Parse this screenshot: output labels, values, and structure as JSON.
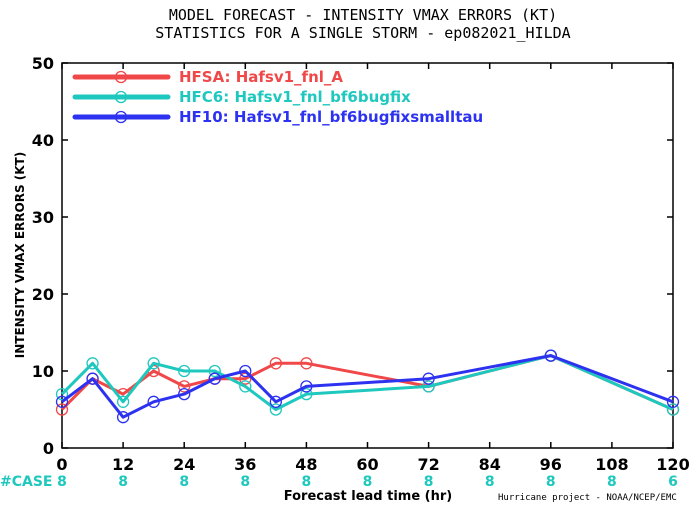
{
  "chart_data": {
    "type": "line",
    "title_line1": "MODEL FORECAST - INTENSITY VMAX ERRORS (KT)",
    "title_line2": "STATISTICS FOR A SINGLE STORM - ep082021_HILDA",
    "xlabel": "Forecast lead time (hr)",
    "ylabel": "INTENSITY VMAX ERRORS (KT)",
    "xlim": [
      0,
      120
    ],
    "ylim": [
      0,
      50
    ],
    "x_ticks": [
      "0",
      "12",
      "24",
      "36",
      "48",
      "60",
      "72",
      "84",
      "96",
      "108",
      "120"
    ],
    "y_ticks": [
      "0",
      "10",
      "20",
      "30",
      "40",
      "50"
    ],
    "grid": false,
    "legend_position": "top-left",
    "case_label": "#CASE",
    "case_color": "#1ec8be",
    "cases": [
      {
        "x": 0,
        "n": "8"
      },
      {
        "x": 12,
        "n": "8"
      },
      {
        "x": 24,
        "n": "8"
      },
      {
        "x": 36,
        "n": "8"
      },
      {
        "x": 48,
        "n": "8"
      },
      {
        "x": 60,
        "n": "8"
      },
      {
        "x": 72,
        "n": "8"
      },
      {
        "x": 84,
        "n": "8"
      },
      {
        "x": 96,
        "n": "8"
      },
      {
        "x": 108,
        "n": "8"
      },
      {
        "x": 120,
        "n": "6"
      }
    ],
    "credit": "Hurricane project - NOAA/NCEP/EMC",
    "series": [
      {
        "name": "HFSA: Hafsv1_fnl_A",
        "color": "#f04848",
        "x": [
          0,
          6,
          12,
          18,
          24,
          30,
          36,
          42,
          48,
          72,
          96,
          120
        ],
        "y": [
          5,
          9,
          7,
          10,
          8,
          9,
          9,
          11,
          11,
          8,
          12,
          5
        ]
      },
      {
        "name": "HFC6: Hafsv1_fnl_bf6bugfix",
        "color": "#1ec8be",
        "x": [
          0,
          6,
          12,
          18,
          24,
          30,
          36,
          42,
          48,
          72,
          96,
          120
        ],
        "y": [
          7,
          11,
          6,
          11,
          10,
          10,
          8,
          5,
          7,
          8,
          12,
          5
        ]
      },
      {
        "name": "HF10: Hafsv1_fnl_bf6bugfixsmalltau",
        "color": "#2d32f0",
        "x": [
          0,
          6,
          12,
          18,
          24,
          30,
          36,
          42,
          48,
          72,
          96,
          120
        ],
        "y": [
          6,
          9,
          4,
          6,
          7,
          9,
          10,
          6,
          8,
          9,
          12,
          6
        ]
      }
    ]
  }
}
